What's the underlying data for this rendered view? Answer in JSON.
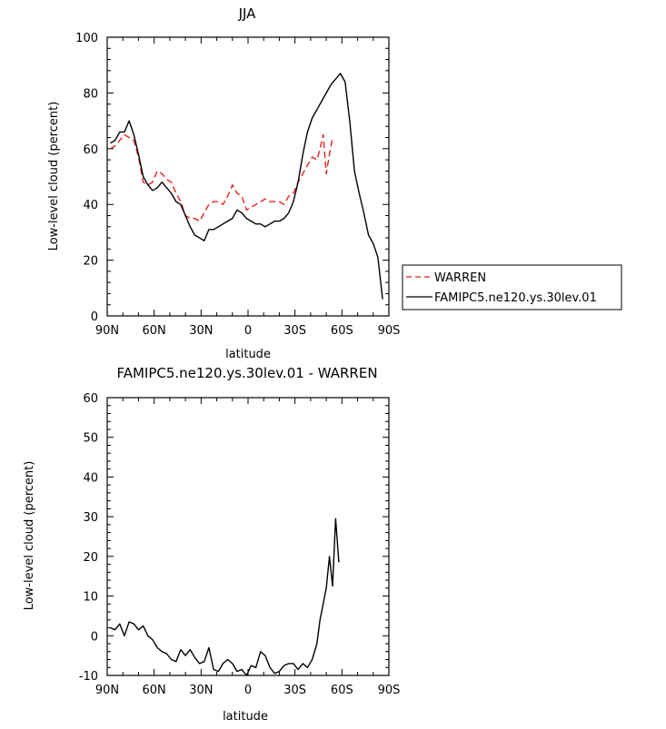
{
  "chart_data": [
    {
      "type": "line",
      "title": "JJA",
      "xlabel": "latitude",
      "ylabel": "Low-level cloud (percent)",
      "xlim": [
        90,
        -90
      ],
      "ylim": [
        0,
        100
      ],
      "x_ticks": [
        90,
        60,
        30,
        0,
        -30,
        -60,
        -90
      ],
      "x_tick_labels": [
        "90N",
        "60N",
        "30N",
        "0",
        "30S",
        "60S",
        "90S"
      ],
      "y_ticks": [
        0,
        20,
        40,
        60,
        80,
        100
      ],
      "y_tick_labels": [
        "0",
        "20",
        "40",
        "60",
        "80",
        "100"
      ],
      "legend": "outside-right",
      "series": [
        {
          "name": "WARREN",
          "color": "#e8211c",
          "dash": "dashed",
          "points": [
            [
              88,
              60
            ],
            [
              85,
              61
            ],
            [
              82,
              63
            ],
            [
              79,
              65
            ],
            [
              76,
              64
            ],
            [
              73,
              63
            ],
            [
              70,
              57
            ],
            [
              67,
              48
            ],
            [
              64,
              47
            ],
            [
              61,
              48
            ],
            [
              58,
              52
            ],
            [
              55,
              51
            ],
            [
              52,
              49
            ],
            [
              49,
              48
            ],
            [
              46,
              44
            ],
            [
              43,
              41
            ],
            [
              40,
              36
            ],
            [
              37,
              35
            ],
            [
              34,
              35
            ],
            [
              31,
              34
            ],
            [
              28,
              37
            ],
            [
              25,
              40
            ],
            [
              22,
              41
            ],
            [
              19,
              41
            ],
            [
              16,
              40
            ],
            [
              13,
              43
            ],
            [
              10,
              47
            ],
            [
              7,
              44
            ],
            [
              4,
              43
            ],
            [
              1,
              38
            ],
            [
              -2,
              39
            ],
            [
              -5,
              40
            ],
            [
              -8,
              41
            ],
            [
              -11,
              42
            ],
            [
              -14,
              41
            ],
            [
              -17,
              41
            ],
            [
              -20,
              41
            ],
            [
              -23,
              40
            ],
            [
              -26,
              43
            ],
            [
              -29,
              44
            ],
            [
              -32,
              48
            ],
            [
              -35,
              51
            ],
            [
              -38,
              54
            ],
            [
              -41,
              57
            ],
            [
              -44,
              56
            ],
            [
              -46,
              60
            ],
            [
              -48,
              65
            ],
            [
              -50,
              51
            ],
            [
              -52,
              58
            ],
            [
              -54,
              64
            ]
          ]
        },
        {
          "name": "FAMIPC5.ne120.ys.30lev.01",
          "color": "#000000",
          "dash": "solid",
          "points": [
            [
              88,
              62
            ],
            [
              85,
              63
            ],
            [
              82,
              66
            ],
            [
              79,
              66
            ],
            [
              76,
              70
            ],
            [
              73,
              65
            ],
            [
              70,
              58
            ],
            [
              67,
              50
            ],
            [
              64,
              47
            ],
            [
              61,
              45
            ],
            [
              58,
              46
            ],
            [
              55,
              48
            ],
            [
              52,
              46
            ],
            [
              49,
              44
            ],
            [
              46,
              41
            ],
            [
              43,
              40
            ],
            [
              40,
              36
            ],
            [
              37,
              32
            ],
            [
              34,
              29
            ],
            [
              31,
              28
            ],
            [
              28,
              27
            ],
            [
              25,
              31
            ],
            [
              22,
              31
            ],
            [
              19,
              32
            ],
            [
              16,
              33
            ],
            [
              13,
              34
            ],
            [
              10,
              35
            ],
            [
              7,
              38
            ],
            [
              4,
              37
            ],
            [
              1,
              35
            ],
            [
              -2,
              34
            ],
            [
              -5,
              33
            ],
            [
              -8,
              33
            ],
            [
              -11,
              32
            ],
            [
              -14,
              33
            ],
            [
              -17,
              34
            ],
            [
              -20,
              34
            ],
            [
              -23,
              35
            ],
            [
              -26,
              37
            ],
            [
              -29,
              41
            ],
            [
              -32,
              48
            ],
            [
              -35,
              58
            ],
            [
              -38,
              66
            ],
            [
              -41,
              71
            ],
            [
              -44,
              74
            ],
            [
              -47,
              77
            ],
            [
              -50,
              80
            ],
            [
              -53,
              83
            ],
            [
              -56,
              85
            ],
            [
              -59,
              87
            ],
            [
              -62,
              84
            ],
            [
              -65,
              70
            ],
            [
              -68,
              52
            ],
            [
              -71,
              44
            ],
            [
              -74,
              37
            ],
            [
              -77,
              29
            ],
            [
              -80,
              26
            ],
            [
              -83,
              21
            ],
            [
              -86,
              6
            ]
          ]
        }
      ]
    },
    {
      "type": "line",
      "title": "FAMIPC5.ne120.ys.30lev.01 - WARREN",
      "xlabel": "latitude",
      "ylabel": "Low-level cloud (percent)",
      "xlim": [
        90,
        -90
      ],
      "ylim": [
        -10,
        60
      ],
      "x_ticks": [
        90,
        60,
        30,
        0,
        -30,
        -60,
        -90
      ],
      "x_tick_labels": [
        "90N",
        "60N",
        "30N",
        "0",
        "30S",
        "60S",
        "90S"
      ],
      "y_ticks": [
        -10,
        0,
        10,
        20,
        30,
        40,
        50,
        60
      ],
      "y_tick_labels": [
        "-10",
        "0",
        "10",
        "20",
        "30",
        "40",
        "50",
        "60"
      ],
      "series": [
        {
          "color": "#000000",
          "dash": "solid",
          "points": [
            [
              88,
              2
            ],
            [
              85,
              1.5
            ],
            [
              82,
              3
            ],
            [
              79,
              0
            ],
            [
              76,
              3.5
            ],
            [
              73,
              3
            ],
            [
              70,
              1.5
            ],
            [
              67,
              2.5
            ],
            [
              64,
              0
            ],
            [
              61,
              -1
            ],
            [
              58,
              -3
            ],
            [
              55,
              -4
            ],
            [
              52,
              -4.5
            ],
            [
              49,
              -6
            ],
            [
              46,
              -6.5
            ],
            [
              43,
              -3.5
            ],
            [
              40,
              -5
            ],
            [
              37,
              -3.5
            ],
            [
              34,
              -5.5
            ],
            [
              31,
              -7
            ],
            [
              28,
              -6.5
            ],
            [
              25,
              -3
            ],
            [
              22,
              -8.5
            ],
            [
              19,
              -9
            ],
            [
              16,
              -7
            ],
            [
              13,
              -6
            ],
            [
              10,
              -7
            ],
            [
              7,
              -9
            ],
            [
              4,
              -8.5
            ],
            [
              1,
              -10
            ],
            [
              -2,
              -7.5
            ],
            [
              -5,
              -8
            ],
            [
              -8,
              -4
            ],
            [
              -11,
              -5
            ],
            [
              -14,
              -8
            ],
            [
              -17,
              -9.5
            ],
            [
              -20,
              -9
            ],
            [
              -23,
              -7.5
            ],
            [
              -26,
              -7
            ],
            [
              -29,
              -7
            ],
            [
              -32,
              -8.5
            ],
            [
              -35,
              -7
            ],
            [
              -38,
              -8
            ],
            [
              -41,
              -6
            ],
            [
              -44,
              -2
            ],
            [
              -46,
              4
            ],
            [
              -48,
              8
            ],
            [
              -50,
              12
            ],
            [
              -52,
              20
            ],
            [
              -54,
              12.5
            ],
            [
              -56,
              29.5
            ],
            [
              -58,
              18.5
            ]
          ]
        }
      ]
    }
  ]
}
